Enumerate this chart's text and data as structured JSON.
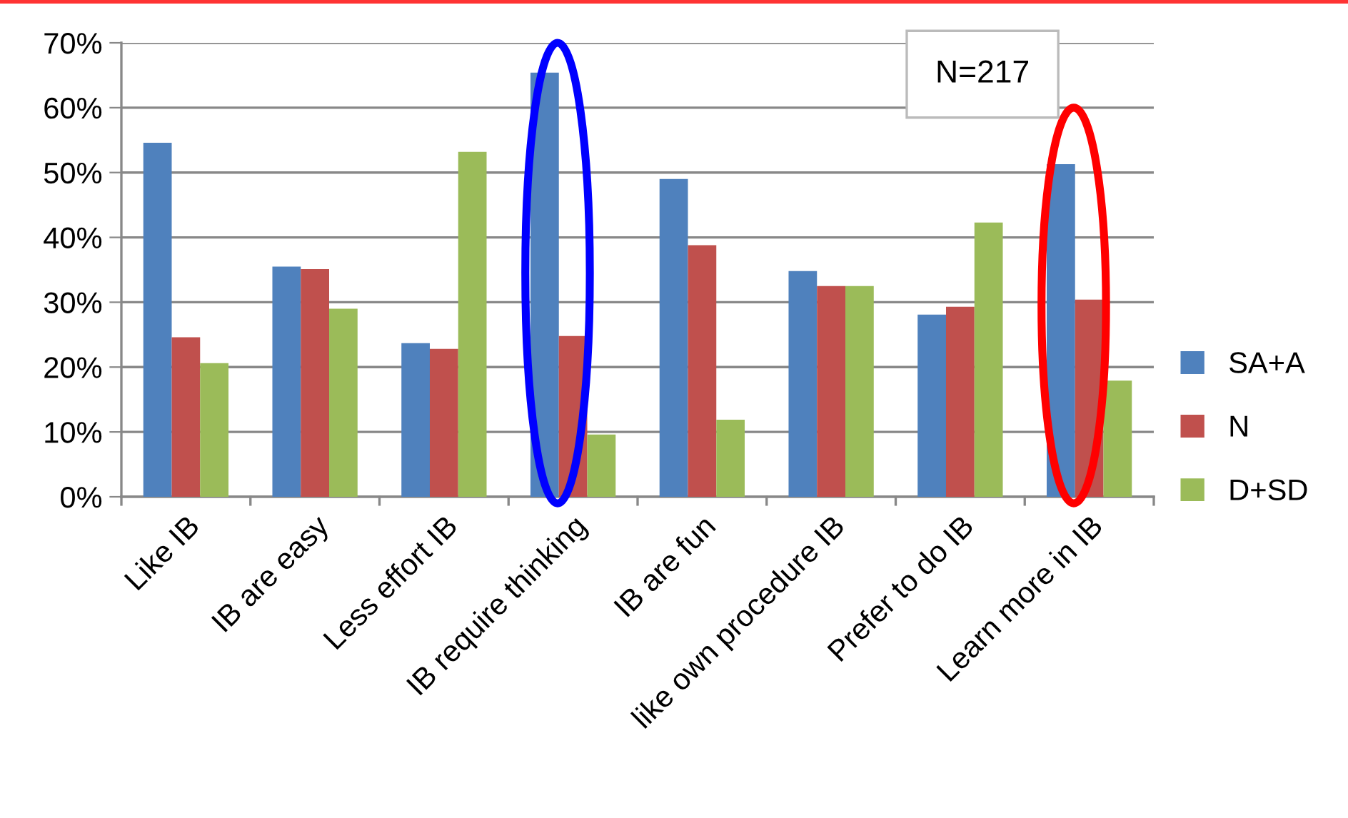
{
  "chart_data": {
    "type": "bar",
    "categories": [
      "Like IB",
      "IB are easy",
      "Less effort IB",
      "IB require thinking",
      "IB are fun",
      "like own procedure IB",
      "Prefer to do IB",
      "Learn more in IB"
    ],
    "series": [
      {
        "name": "SA+A",
        "color": "#4f81bd",
        "values": [
          54.6,
          35.5,
          23.7,
          65.4,
          49.0,
          34.8,
          28.1,
          51.3
        ]
      },
      {
        "name": "N",
        "color": "#c0504d",
        "values": [
          24.6,
          35.1,
          22.8,
          24.8,
          38.8,
          32.5,
          29.3,
          30.4
        ]
      },
      {
        "name": "D+SD",
        "color": "#9bbb59",
        "values": [
          20.6,
          29.0,
          53.2,
          9.6,
          11.9,
          32.5,
          42.3,
          17.9
        ]
      }
    ],
    "ylim": [
      0,
      70
    ],
    "yticks": [
      {
        "value": 0,
        "label": "0%"
      },
      {
        "value": 10,
        "label": "10%"
      },
      {
        "value": 20,
        "label": "20%"
      },
      {
        "value": 30,
        "label": "30%"
      },
      {
        "value": 40,
        "label": "40%"
      },
      {
        "value": 50,
        "label": "50%"
      },
      {
        "value": 60,
        "label": "60%"
      },
      {
        "value": 70,
        "label": "70%"
      }
    ],
    "grid": "y",
    "legend": "right",
    "annotations": [
      "N=217"
    ]
  }
}
